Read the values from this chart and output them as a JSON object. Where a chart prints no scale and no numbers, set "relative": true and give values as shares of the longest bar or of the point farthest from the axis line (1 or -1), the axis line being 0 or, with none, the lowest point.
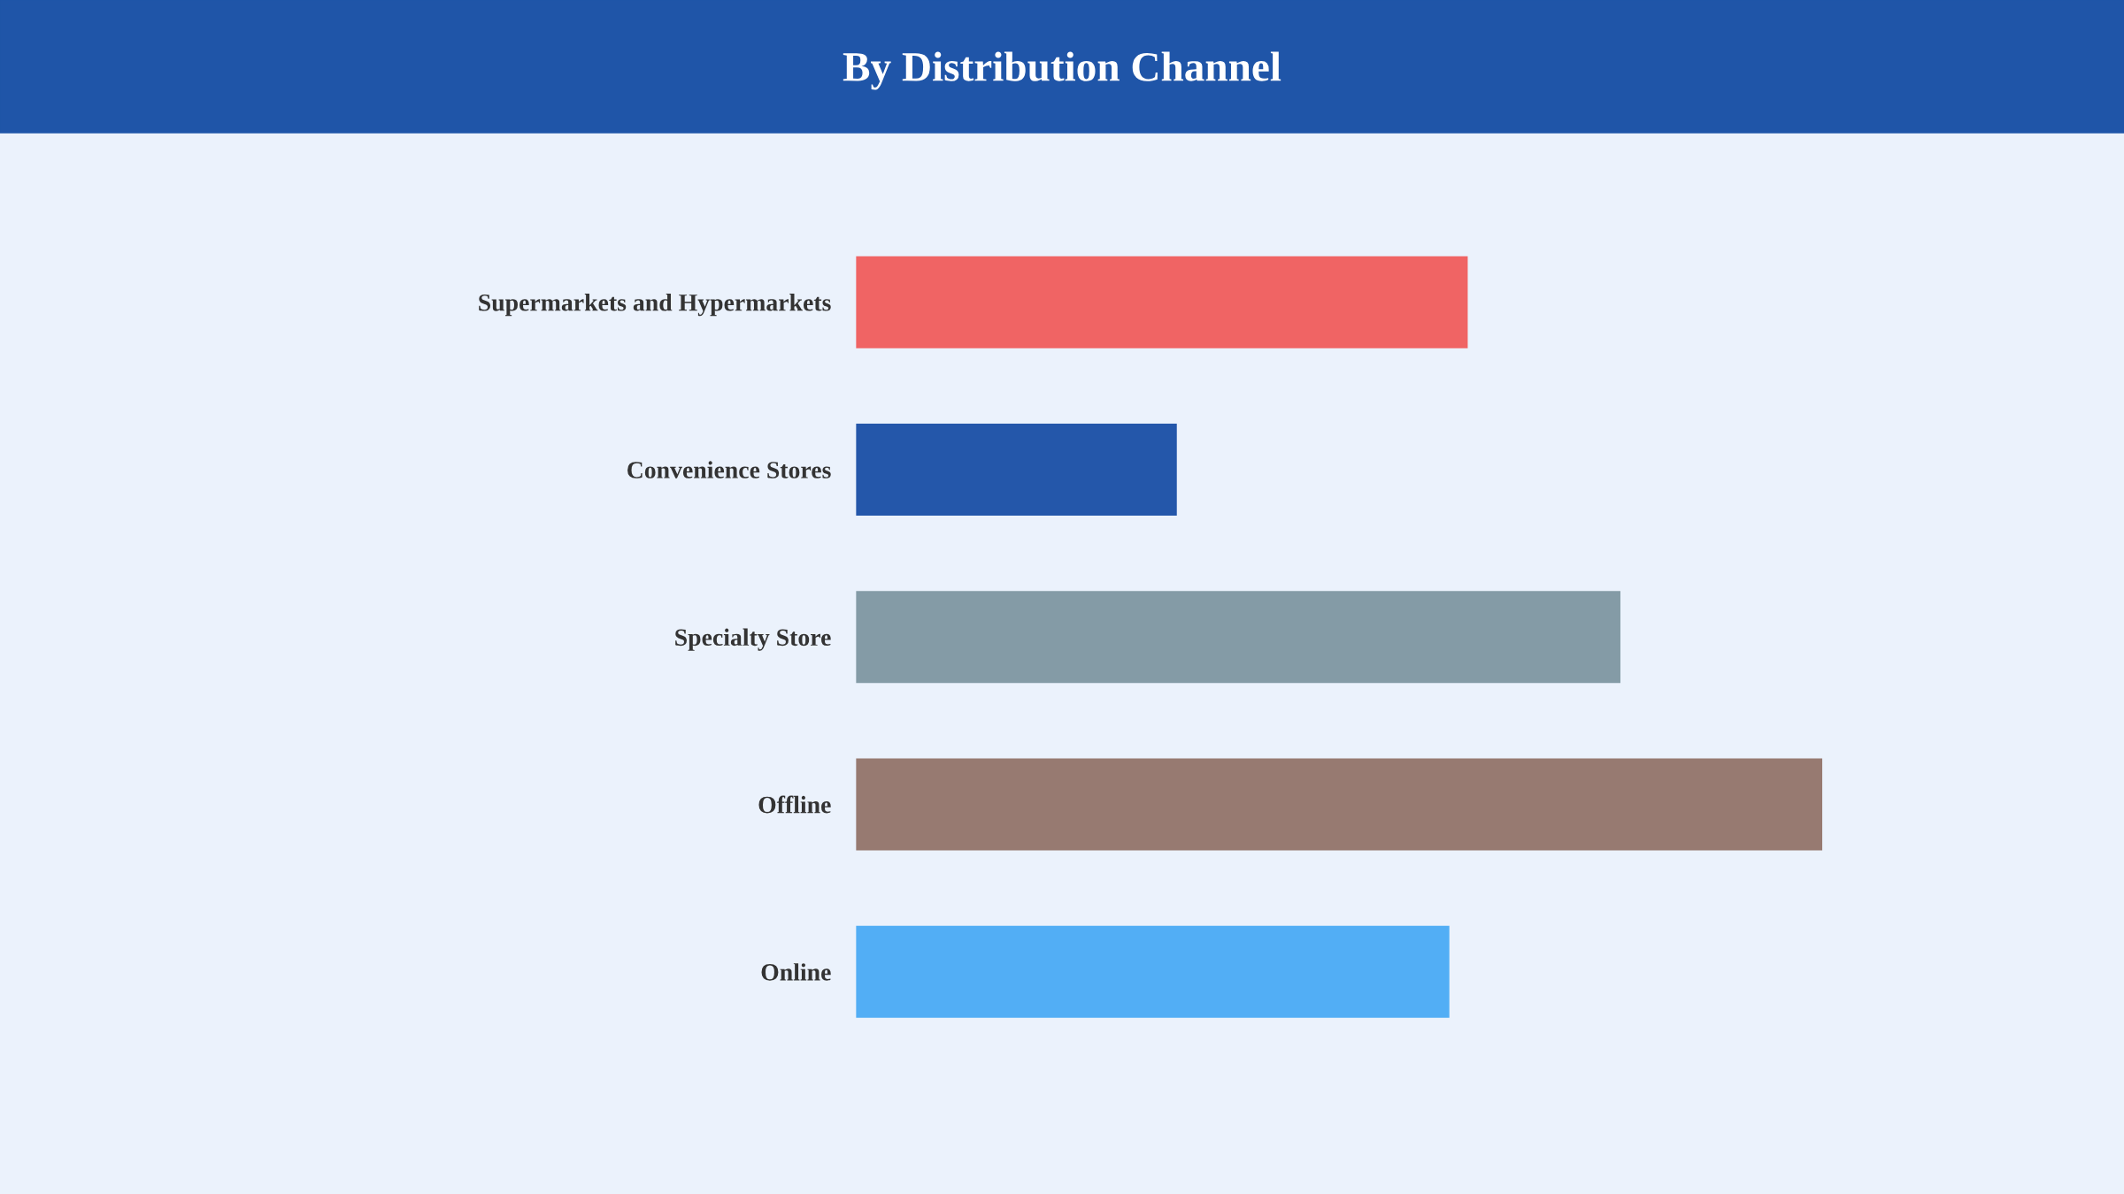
{
  "chart_data": {
    "type": "bar",
    "title": "By Distribution Channel",
    "orientation": "horizontal",
    "relative": true,
    "categories": [
      "Supermarkets and Hypermarkets",
      "Convenience Stores",
      "Specialty Store",
      "Offline",
      "Online"
    ],
    "values": [
      0.633,
      0.332,
      0.791,
      1,
      0.614
    ],
    "colors": [
      "#f06464",
      "#2457aa",
      "#849ba6",
      "#977a71",
      "#52aef5"
    ],
    "grid": false,
    "legend": false
  }
}
